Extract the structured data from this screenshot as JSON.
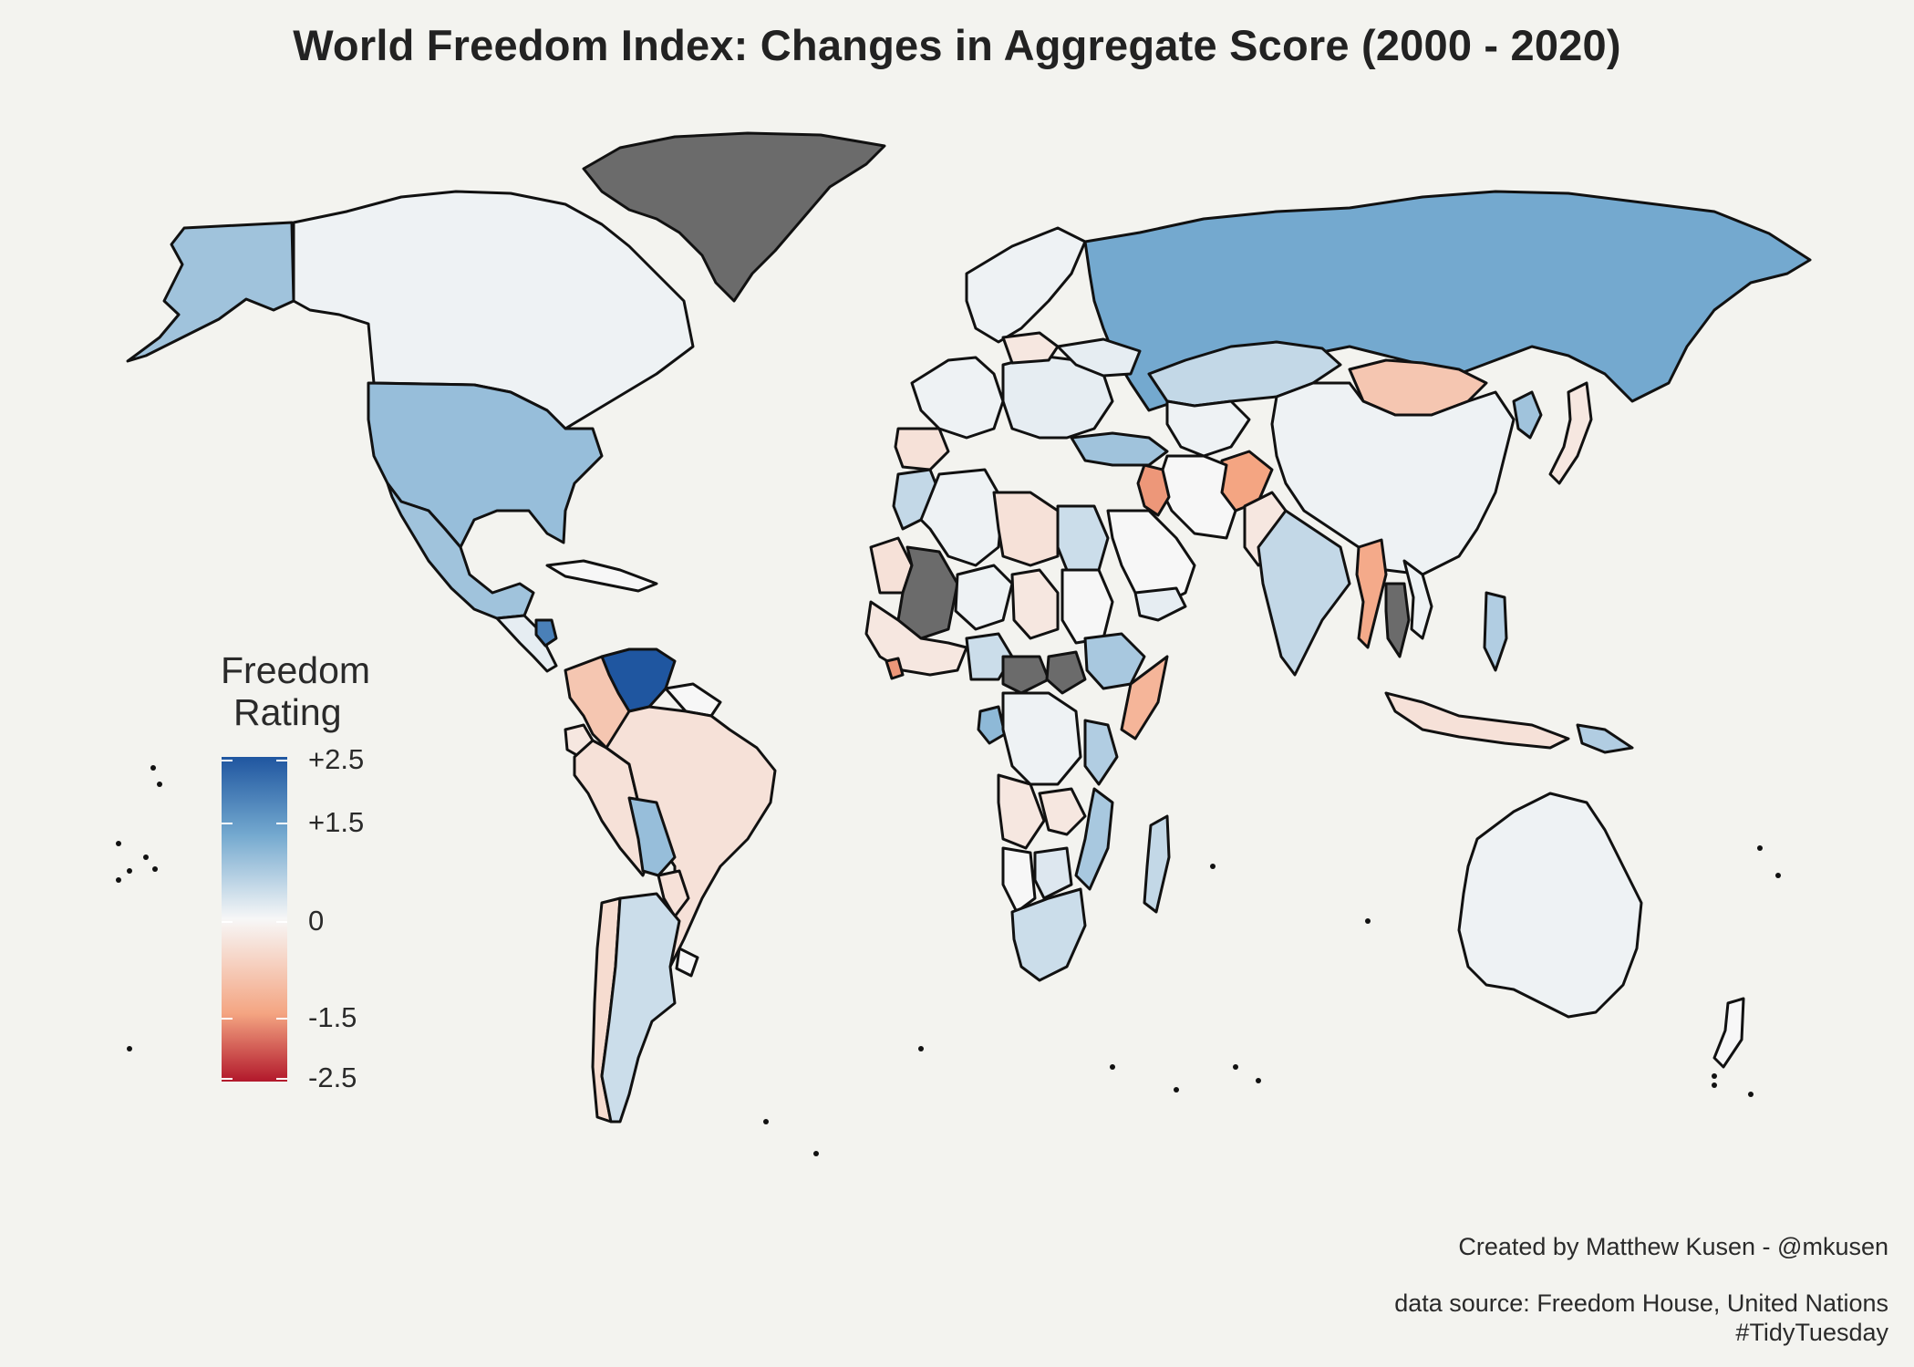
{
  "title": "World Freedom Index: Changes in Aggregate Score (2000 - 2020)",
  "legend": {
    "title_line1": "Freedom",
    "title_line2": "Rating",
    "ticks": [
      {
        "label": "+2.5",
        "value": 2.5
      },
      {
        "label": "+1.5",
        "value": 1.5
      },
      {
        "label": "0",
        "value": 0
      },
      {
        "label": "-1.5",
        "value": -1.5
      },
      {
        "label": "-2.5",
        "value": -2.5
      }
    ],
    "colors": {
      "high": "#1f56a0",
      "mid_high": "#74a9cf",
      "zero": "#f7f7f7",
      "mid_low": "#f4a582",
      "low": "#b2182b",
      "no_data": "#6b6b6b",
      "border": "#111111",
      "background": "#f3f3ef"
    }
  },
  "captions": {
    "credit": "Created by Matthew Kusen - @mkusen",
    "source": "data source: Freedom House, United Nations",
    "tag": "#TidyTuesday"
  },
  "regions": [
    {
      "name": "Alaska",
      "value": 1.0
    },
    {
      "name": "Canada",
      "value": 0.1
    },
    {
      "name": "Greenland",
      "value": null
    },
    {
      "name": "United States",
      "value": 1.1
    },
    {
      "name": "Mexico",
      "value": 1.0
    },
    {
      "name": "Central America",
      "value": 0.2
    },
    {
      "name": "Nicaragua",
      "value": 2.0
    },
    {
      "name": "Caribbean",
      "value": 0.0
    },
    {
      "name": "Venezuela",
      "value": 2.5
    },
    {
      "name": "Colombia",
      "value": -0.9
    },
    {
      "name": "Ecuador",
      "value": -0.3
    },
    {
      "name": "Peru",
      "value": -0.4
    },
    {
      "name": "Guianas",
      "value": 0.0
    },
    {
      "name": "Brazil",
      "value": -0.4
    },
    {
      "name": "Bolivia",
      "value": 1.1
    },
    {
      "name": "Paraguay",
      "value": -0.4
    },
    {
      "name": "Chile",
      "value": -0.5
    },
    {
      "name": "Argentina",
      "value": 0.5
    },
    {
      "name": "Uruguay",
      "value": 0.0
    },
    {
      "name": "Scandinavia",
      "value": 0.1
    },
    {
      "name": "Russia",
      "value": 1.5
    },
    {
      "name": "Western Europe",
      "value": 0.1
    },
    {
      "name": "Iberia",
      "value": -0.4
    },
    {
      "name": "Eastern Europe",
      "value": 0.2
    },
    {
      "name": "Poland",
      "value": -0.3
    },
    {
      "name": "Ukraine",
      "value": 0.2
    },
    {
      "name": "Turkey",
      "value": 1.0
    },
    {
      "name": "Kazakhstan",
      "value": 0.6
    },
    {
      "name": "Mongolia",
      "value": -0.9
    },
    {
      "name": "China",
      "value": 0.1
    },
    {
      "name": "Korea",
      "value": 1.0
    },
    {
      "name": "Japan",
      "value": -0.3
    },
    {
      "name": "Central Asia",
      "value": 0.1
    },
    {
      "name": "Afghanistan",
      "value": -1.5
    },
    {
      "name": "Pakistan",
      "value": -0.3
    },
    {
      "name": "India",
      "value": 0.6
    },
    {
      "name": "Iran",
      "value": 0.0
    },
    {
      "name": "Iraq",
      "value": -1.6
    },
    {
      "name": "Saudi Arabia",
      "value": 0.0
    },
    {
      "name": "Yemen",
      "value": 0.2
    },
    {
      "name": "Myanmar",
      "value": -1.4
    },
    {
      "name": "Thailand",
      "value": null
    },
    {
      "name": "Vietnam",
      "value": 0.1
    },
    {
      "name": "Philippines",
      "value": 0.8
    },
    {
      "name": "Indonesia",
      "value": -0.4
    },
    {
      "name": "Papua New Guinea",
      "value": 0.8
    },
    {
      "name": "Australia",
      "value": 0.1
    },
    {
      "name": "New Zealand",
      "value": 0.0
    },
    {
      "name": "Morocco",
      "value": 0.6
    },
    {
      "name": "Algeria",
      "value": 0.1
    },
    {
      "name": "Libya",
      "value": -0.4
    },
    {
      "name": "Egypt",
      "value": 0.5
    },
    {
      "name": "Sudan",
      "value": 0.0
    },
    {
      "name": "Mauritania",
      "value": -0.4
    },
    {
      "name": "Mali",
      "value": null
    },
    {
      "name": "Niger",
      "value": 0.1
    },
    {
      "name": "Chad",
      "value": -0.3
    },
    {
      "name": "West Africa Coast",
      "value": -0.3
    },
    {
      "name": "Sierra Leone",
      "value": -1.6
    },
    {
      "name": "Nigeria",
      "value": 0.5
    },
    {
      "name": "Central African Republic",
      "value": null
    },
    {
      "name": "South Sudan",
      "value": null
    },
    {
      "name": "Ethiopia",
      "value": 0.9
    },
    {
      "name": "Somalia",
      "value": -1.2
    },
    {
      "name": "Gabon",
      "value": 1.2
    },
    {
      "name": "DR Congo",
      "value": 0.1
    },
    {
      "name": "Tanzania",
      "value": 0.8
    },
    {
      "name": "Angola",
      "value": -0.3
    },
    {
      "name": "Zambia",
      "value": -0.3
    },
    {
      "name": "Mozambique",
      "value": 0.9
    },
    {
      "name": "Namibia",
      "value": 0.0
    },
    {
      "name": "Botswana",
      "value": 0.3
    },
    {
      "name": "South Africa",
      "value": 0.5
    },
    {
      "name": "Madagascar",
      "value": 0.6
    }
  ]
}
